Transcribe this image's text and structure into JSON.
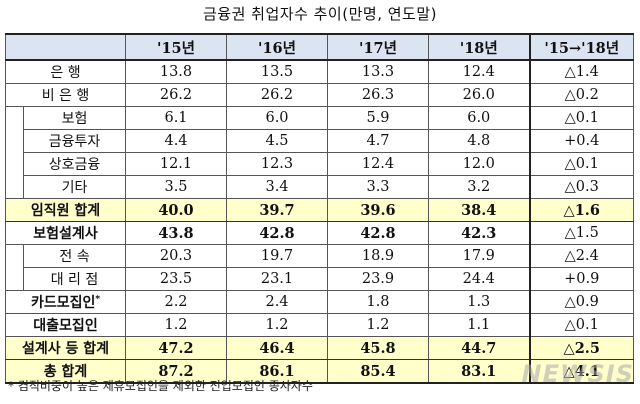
{
  "title": "금융권 취업자수 추이(만명, 연도말)",
  "columns": [
    "'15년",
    "'16년",
    "'17년",
    "'18년",
    "'15→'18년"
  ],
  "rows": [
    {
      "label": "은    행",
      "values": [
        "13.8",
        "13.5",
        "13.3",
        "12.4",
        "△1.4"
      ]
    },
    {
      "label": "비 은 행",
      "values": [
        "26.2",
        "26.2",
        "26.3",
        "26.0",
        "△0.2"
      ]
    },
    {
      "label": "보험",
      "values": [
        "6.1",
        "6.0",
        "5.9",
        "6.0",
        "△0.1"
      ]
    },
    {
      "label": "금융투자",
      "values": [
        "4.4",
        "4.5",
        "4.7",
        "4.8",
        "+0.4"
      ]
    },
    {
      "label": "상호금융",
      "values": [
        "12.1",
        "12.3",
        "12.4",
        "12.0",
        "△0.1"
      ]
    },
    {
      "label": "기타",
      "values": [
        "3.5",
        "3.4",
        "3.3",
        "3.2",
        "△0.3"
      ]
    },
    {
      "label": "임직원 합계",
      "values": [
        "40.0",
        "39.7",
        "39.6",
        "38.4",
        "△1.6"
      ]
    },
    {
      "label": "보험설계사",
      "values": [
        "43.8",
        "42.8",
        "42.8",
        "42.3",
        "△1.5"
      ]
    },
    {
      "label": "전    속",
      "values": [
        "20.3",
        "19.7",
        "18.9",
        "17.9",
        "△2.4"
      ]
    },
    {
      "label": "대 리 점",
      "values": [
        "23.5",
        "23.1",
        "23.9",
        "24.4",
        "+0.9"
      ]
    },
    {
      "label": "카드모집인",
      "sup": "*",
      "values": [
        "2.2",
        "2.4",
        "1.8",
        "1.3",
        "△0.9"
      ]
    },
    {
      "label": "대출모집인",
      "values": [
        "1.2",
        "1.2",
        "1.2",
        "1.1",
        "△0.1"
      ]
    },
    {
      "label": "설계사 등 합계",
      "values": [
        "47.2",
        "46.4",
        "45.8",
        "44.7",
        "△2.5"
      ]
    },
    {
      "label": "총 합계",
      "values": [
        "87.2",
        "86.1",
        "85.4",
        "83.1",
        "△4.1"
      ]
    }
  ],
  "footnote": "* 겸직비중이 높은 제휴모집인을 제외한 전업모집인 종사자수",
  "watermark": "NEWSIS"
}
